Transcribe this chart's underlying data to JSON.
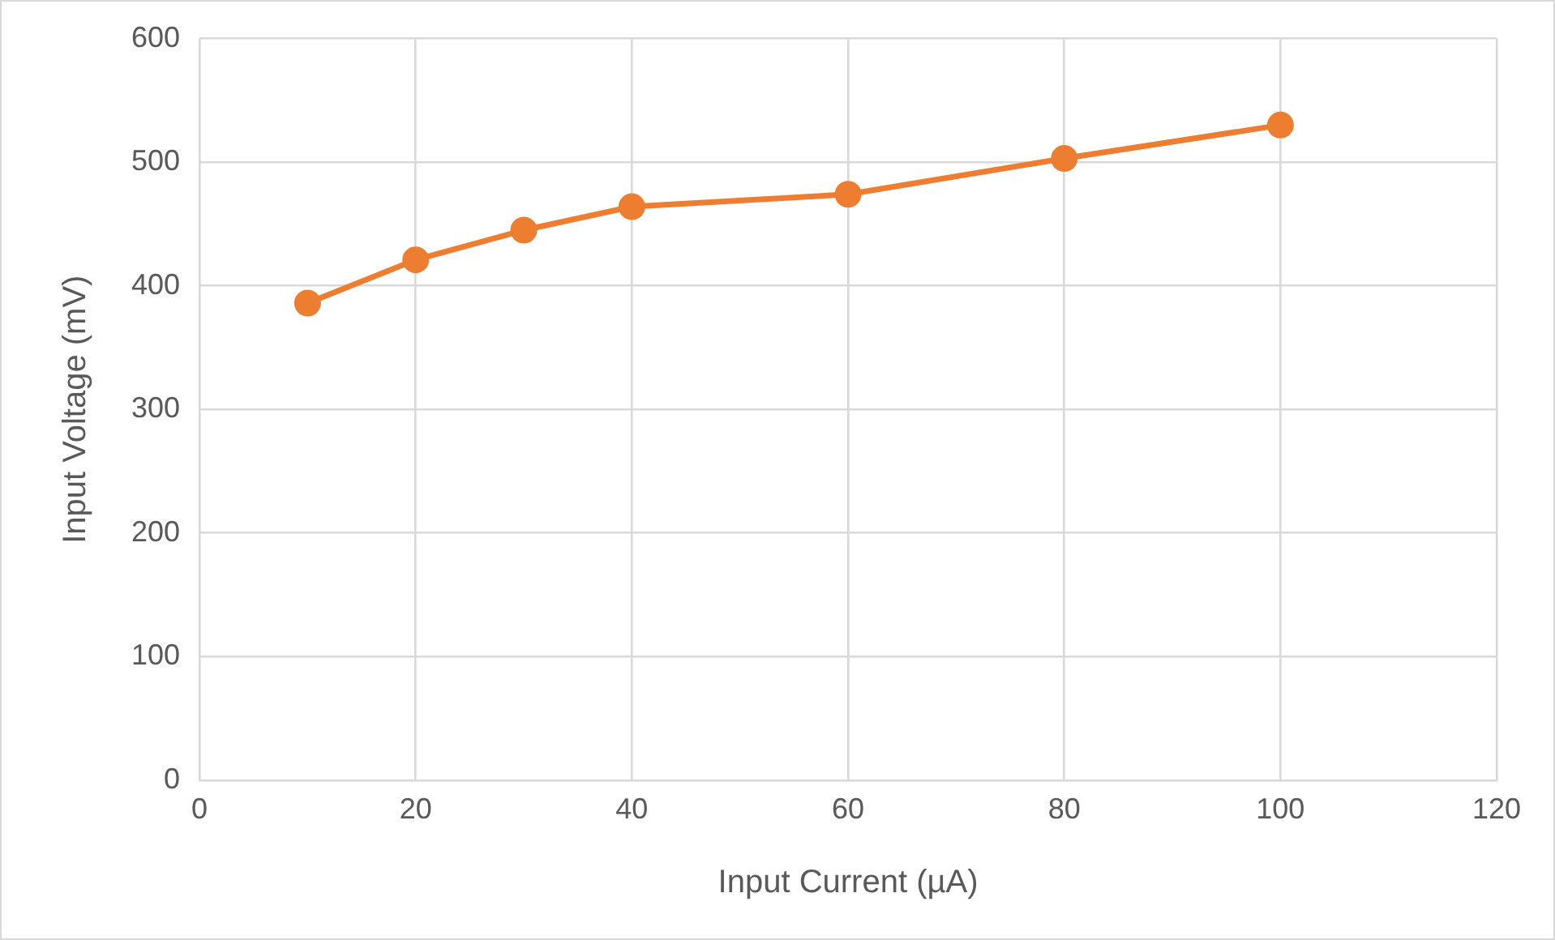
{
  "chart_data": {
    "type": "line",
    "xlabel": "Input Current (µA)",
    "ylabel": "Input Voltage (mV)",
    "x": [
      10,
      20,
      30,
      40,
      60,
      80,
      100
    ],
    "series": [
      {
        "color": "#ed7d31",
        "values": [
          386,
          421,
          445,
          464,
          474,
          503,
          530
        ]
      }
    ],
    "xlim": [
      0,
      120
    ],
    "xticks": [
      0,
      20,
      40,
      60,
      80,
      100,
      120
    ],
    "ylim": [
      0,
      600
    ],
    "yticks": [
      0,
      100,
      200,
      300,
      400,
      500,
      600
    ],
    "grid": true,
    "legend": false,
    "marker": "circle",
    "line_style": "solid"
  }
}
